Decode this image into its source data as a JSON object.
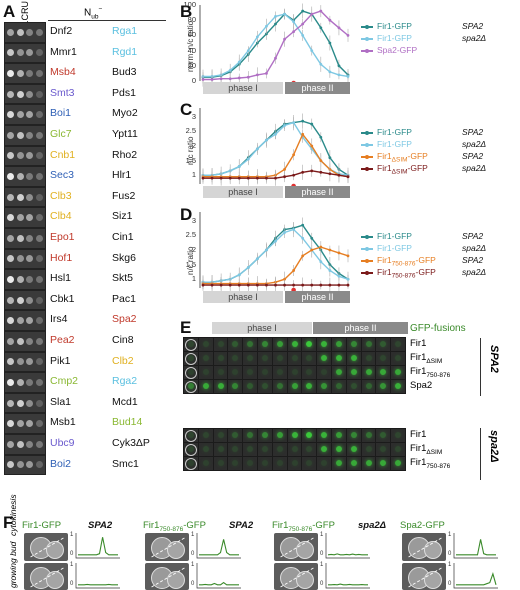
{
  "panels": {
    "a": "A",
    "b": "B",
    "c": "C",
    "d": "D",
    "e": "E",
    "f": "F"
  },
  "panelA": {
    "col1": "Fir1CRU",
    "col2": "N",
    "col2_sub": "ub",
    "col2_sup": "−",
    "pairs": [
      [
        "Dnf2",
        "Rga1"
      ],
      [
        "Mmr1",
        "Rgd1"
      ],
      [
        "Msb4",
        "Bud3"
      ],
      [
        "Smt3",
        "Pds1"
      ],
      [
        "Boi1",
        "Myo2"
      ],
      [
        "Glc7",
        "Ypt11"
      ],
      [
        "Cnb1",
        "Rho2"
      ],
      [
        "Sec3",
        "Hlr1"
      ],
      [
        "Clb3",
        "Fus2"
      ],
      [
        "Clb4",
        "Siz1"
      ],
      [
        "Epo1",
        "Cin1"
      ],
      [
        "Hof1",
        "Skg6"
      ],
      [
        "Hsl1",
        "Skt5"
      ],
      [
        "Cbk1",
        "Pac1"
      ],
      [
        "Irs4",
        "Spa2"
      ],
      [
        "Pea2",
        "Cin8"
      ],
      [
        "Pik1",
        "Clb2"
      ],
      [
        "Cmp2",
        "Rga2"
      ],
      [
        "Sla1",
        "Mcd1"
      ],
      [
        "Msb1",
        "Bud14"
      ],
      [
        "Ubc9",
        "Cyk3ΔP"
      ],
      [
        "Boi2",
        "Smc1"
      ]
    ],
    "colors": [
      [
        "#111111",
        "#5bc0e0"
      ],
      [
        "#111111",
        "#5bc0e0"
      ],
      [
        "#c0392b",
        "#111111"
      ],
      [
        "#6a5acd",
        "#111111"
      ],
      [
        "#2e5fb5",
        "#111111"
      ],
      [
        "#8ab833",
        "#111111"
      ],
      [
        "#e0b020",
        "#111111"
      ],
      [
        "#2e5fb5",
        "#111111"
      ],
      [
        "#e0b020",
        "#111111"
      ],
      [
        "#e0b020",
        "#111111"
      ],
      [
        "#c0392b",
        "#111111"
      ],
      [
        "#c0392b",
        "#111111"
      ],
      [
        "#111111",
        "#111111"
      ],
      [
        "#111111",
        "#111111"
      ],
      [
        "#111111",
        "#c0392b"
      ],
      [
        "#c0392b",
        "#111111"
      ],
      [
        "#111111",
        "#e0b020"
      ],
      [
        "#8ab833",
        "#5bc0e0"
      ],
      [
        "#111111",
        "#111111"
      ],
      [
        "#111111",
        "#8ab833"
      ],
      [
        "#6a5acd",
        "#111111"
      ],
      [
        "#2e5fb5",
        "#111111"
      ]
    ]
  },
  "panelB": {
    "ylabel": "norm. n/c ratio",
    "yticks": [
      "0",
      "20",
      "40",
      "60",
      "80",
      "100"
    ],
    "phase1": "phase I",
    "phase2": "phase II",
    "legend": [
      {
        "name": "Fir1-GFP",
        "genotype": "SPA2",
        "color": "#2a8a8a"
      },
      {
        "name": "Fir1-GFP",
        "genotype": "spa2Δ",
        "color": "#7ec8e3"
      },
      {
        "name": "Spa2-GFP",
        "genotype": "",
        "color": "#b06fc4"
      }
    ]
  },
  "panelC": {
    "ylabel": "n/c ratio",
    "yticks": [
      "1",
      "1.5",
      "2",
      "2.5",
      "3"
    ],
    "phase1": "phase I",
    "phase2": "phase II",
    "legend": [
      {
        "name": "Fir1-GFP",
        "sub": "",
        "suffix": "",
        "genotype": "SPA2",
        "color": "#2a8a8a"
      },
      {
        "name": "Fir1-GFP",
        "sub": "",
        "suffix": "",
        "genotype": "spa2Δ",
        "color": "#7ec8e3"
      },
      {
        "name": "Fir1",
        "sub": "ΔSIM",
        "suffix": "-GFP",
        "genotype": "SPA2",
        "color": "#e67e22"
      },
      {
        "name": "Fir1",
        "sub": "ΔSIM",
        "suffix": "-GFP",
        "genotype": "spa2Δ",
        "color": "#7b1a1a"
      }
    ]
  },
  "panelD": {
    "ylabel": "n/c ratio",
    "yticks": [
      "1",
      "1.5",
      "2",
      "2.5",
      "3"
    ],
    "phase1": "phase I",
    "phase2": "phase II",
    "legend": [
      {
        "name": "Fir1-GFP",
        "sub": "",
        "suffix": "",
        "genotype": "SPA2",
        "color": "#2a8a8a"
      },
      {
        "name": "Fir1-GFP",
        "sub": "",
        "suffix": "",
        "genotype": "spa2Δ",
        "color": "#7ec8e3"
      },
      {
        "name": "Fir1",
        "sub": "750-876",
        "suffix": "-GFP",
        "genotype": "SPA2",
        "color": "#e67e22"
      },
      {
        "name": "Fir1",
        "sub": "750-876",
        "suffix": "-GFP",
        "genotype": "spa2Δ",
        "color": "#7b1a1a"
      }
    ]
  },
  "chart_data": [
    {
      "type": "line",
      "x": [
        1,
        2,
        3,
        4,
        5,
        6,
        7,
        8,
        9,
        10,
        11,
        12,
        13,
        14,
        15,
        16,
        17
      ],
      "ylim": [
        0,
        100
      ],
      "series": [
        {
          "name": "Fir1-GFP SPA2",
          "values": [
            5,
            5,
            7,
            12,
            22,
            35,
            50,
            62,
            75,
            88,
            80,
            92,
            88,
            70,
            50,
            20,
            8
          ]
        },
        {
          "name": "Fir1-GFP spa2Δ",
          "values": [
            6,
            6,
            8,
            14,
            25,
            40,
            58,
            72,
            85,
            88,
            78,
            60,
            40,
            22,
            12,
            8,
            6
          ]
        },
        {
          "name": "Spa2-GFP",
          "values": [
            2,
            2,
            3,
            3,
            4,
            5,
            8,
            10,
            30,
            55,
            65,
            75,
            88,
            92,
            80,
            70,
            60
          ]
        }
      ]
    },
    {
      "type": "line",
      "x": [
        1,
        2,
        3,
        4,
        5,
        6,
        7,
        8,
        9,
        10,
        11,
        12,
        13,
        14,
        15,
        16,
        17
      ],
      "ylim": [
        0.7,
        3.3
      ],
      "series": [
        {
          "name": "Fir1-GFP SPA2",
          "values": [
            1.0,
            1.0,
            1.05,
            1.15,
            1.3,
            1.6,
            1.9,
            2.2,
            2.5,
            2.75,
            2.8,
            2.85,
            2.75,
            2.3,
            1.6,
            1.2,
            1.0
          ]
        },
        {
          "name": "Fir1-GFP spa2Δ",
          "values": [
            1.0,
            1.0,
            1.05,
            1.15,
            1.3,
            1.55,
            1.9,
            2.2,
            2.4,
            2.7,
            2.8,
            2.3,
            1.9,
            1.5,
            1.2,
            1.05,
            1.0
          ]
        },
        {
          "name": "Fir1ΔSIM-GFP SPA2",
          "values": [
            0.95,
            0.95,
            0.95,
            0.95,
            0.95,
            0.95,
            0.95,
            0.95,
            1.0,
            1.2,
            1.7,
            2.4,
            2.0,
            1.5,
            1.2,
            1.0,
            0.95
          ]
        },
        {
          "name": "Fir1ΔSIM-GFP spa2Δ",
          "values": [
            0.9,
            0.9,
            0.9,
            0.9,
            0.9,
            0.9,
            0.9,
            0.9,
            0.9,
            0.95,
            1.0,
            1.1,
            1.15,
            1.1,
            1.05,
            1.0,
            0.95
          ]
        }
      ]
    },
    {
      "type": "line",
      "x": [
        1,
        2,
        3,
        4,
        5,
        6,
        7,
        8,
        9,
        10,
        11,
        12,
        13,
        14,
        15,
        16,
        17
      ],
      "ylim": [
        0.7,
        3.3
      ],
      "series": [
        {
          "name": "Fir1-GFP SPA2",
          "values": [
            0.9,
            0.9,
            0.95,
            1.0,
            1.15,
            1.4,
            1.7,
            2.0,
            2.4,
            2.7,
            2.75,
            2.85,
            2.4,
            2.0,
            1.5,
            1.2,
            1.0
          ]
        },
        {
          "name": "Fir1-GFP spa2Δ",
          "values": [
            0.9,
            0.9,
            0.95,
            1.0,
            1.15,
            1.4,
            1.7,
            2.0,
            2.3,
            2.6,
            2.7,
            2.4,
            2.0,
            1.6,
            1.3,
            1.1,
            1.0
          ]
        },
        {
          "name": "Fir1750-876-GFP SPA2",
          "values": [
            0.85,
            0.85,
            0.85,
            0.85,
            0.85,
            0.85,
            0.85,
            0.85,
            0.9,
            1.0,
            1.3,
            1.8,
            2.0,
            2.1,
            2.0,
            1.9,
            1.8
          ]
        },
        {
          "name": "Fir1750-876-GFP spa2Δ",
          "values": [
            0.8,
            0.8,
            0.8,
            0.8,
            0.8,
            0.8,
            0.8,
            0.8,
            0.8,
            0.8,
            0.8,
            0.8,
            0.8,
            0.8,
            0.8,
            0.8,
            0.8
          ]
        }
      ]
    }
  ],
  "panelE": {
    "phase1": "phase I",
    "phase2": "phase II",
    "title": "GFP-fusions",
    "rows_top": [
      {
        "name": "Fir1",
        "sub": ""
      },
      {
        "name": "Fir1",
        "sub": "ΔSIM"
      },
      {
        "name": "Fir1",
        "sub": "750-876"
      },
      {
        "name": "Spa2",
        "sub": ""
      }
    ],
    "rows_bottom": [
      {
        "name": "Fir1",
        "sub": ""
      },
      {
        "name": "Fir1",
        "sub": "ΔSIM"
      },
      {
        "name": "Fir1",
        "sub": "750-876"
      }
    ],
    "geno_top": "SPA2",
    "geno_bottom": "spa2Δ"
  },
  "panelF": {
    "rowlabels": [
      "cytokinesis",
      "growing bud"
    ],
    "groups": [
      {
        "name": "Fir1-GFP",
        "sub": "",
        "suffix": "",
        "geno": "SPA2"
      },
      {
        "name": "Fir1",
        "sub": "750-876",
        "suffix": "-GFP",
        "geno": "SPA2"
      },
      {
        "name": "Fir1",
        "sub": "750-876",
        "suffix": "-GFP",
        "geno": "spa2Δ"
      },
      {
        "name": "Spa2-GFP",
        "sub": "",
        "suffix": "",
        "geno": ""
      }
    ],
    "profile_ticks": [
      "0",
      "1"
    ],
    "marker_letters": [
      "A",
      "A",
      "A"
    ]
  }
}
